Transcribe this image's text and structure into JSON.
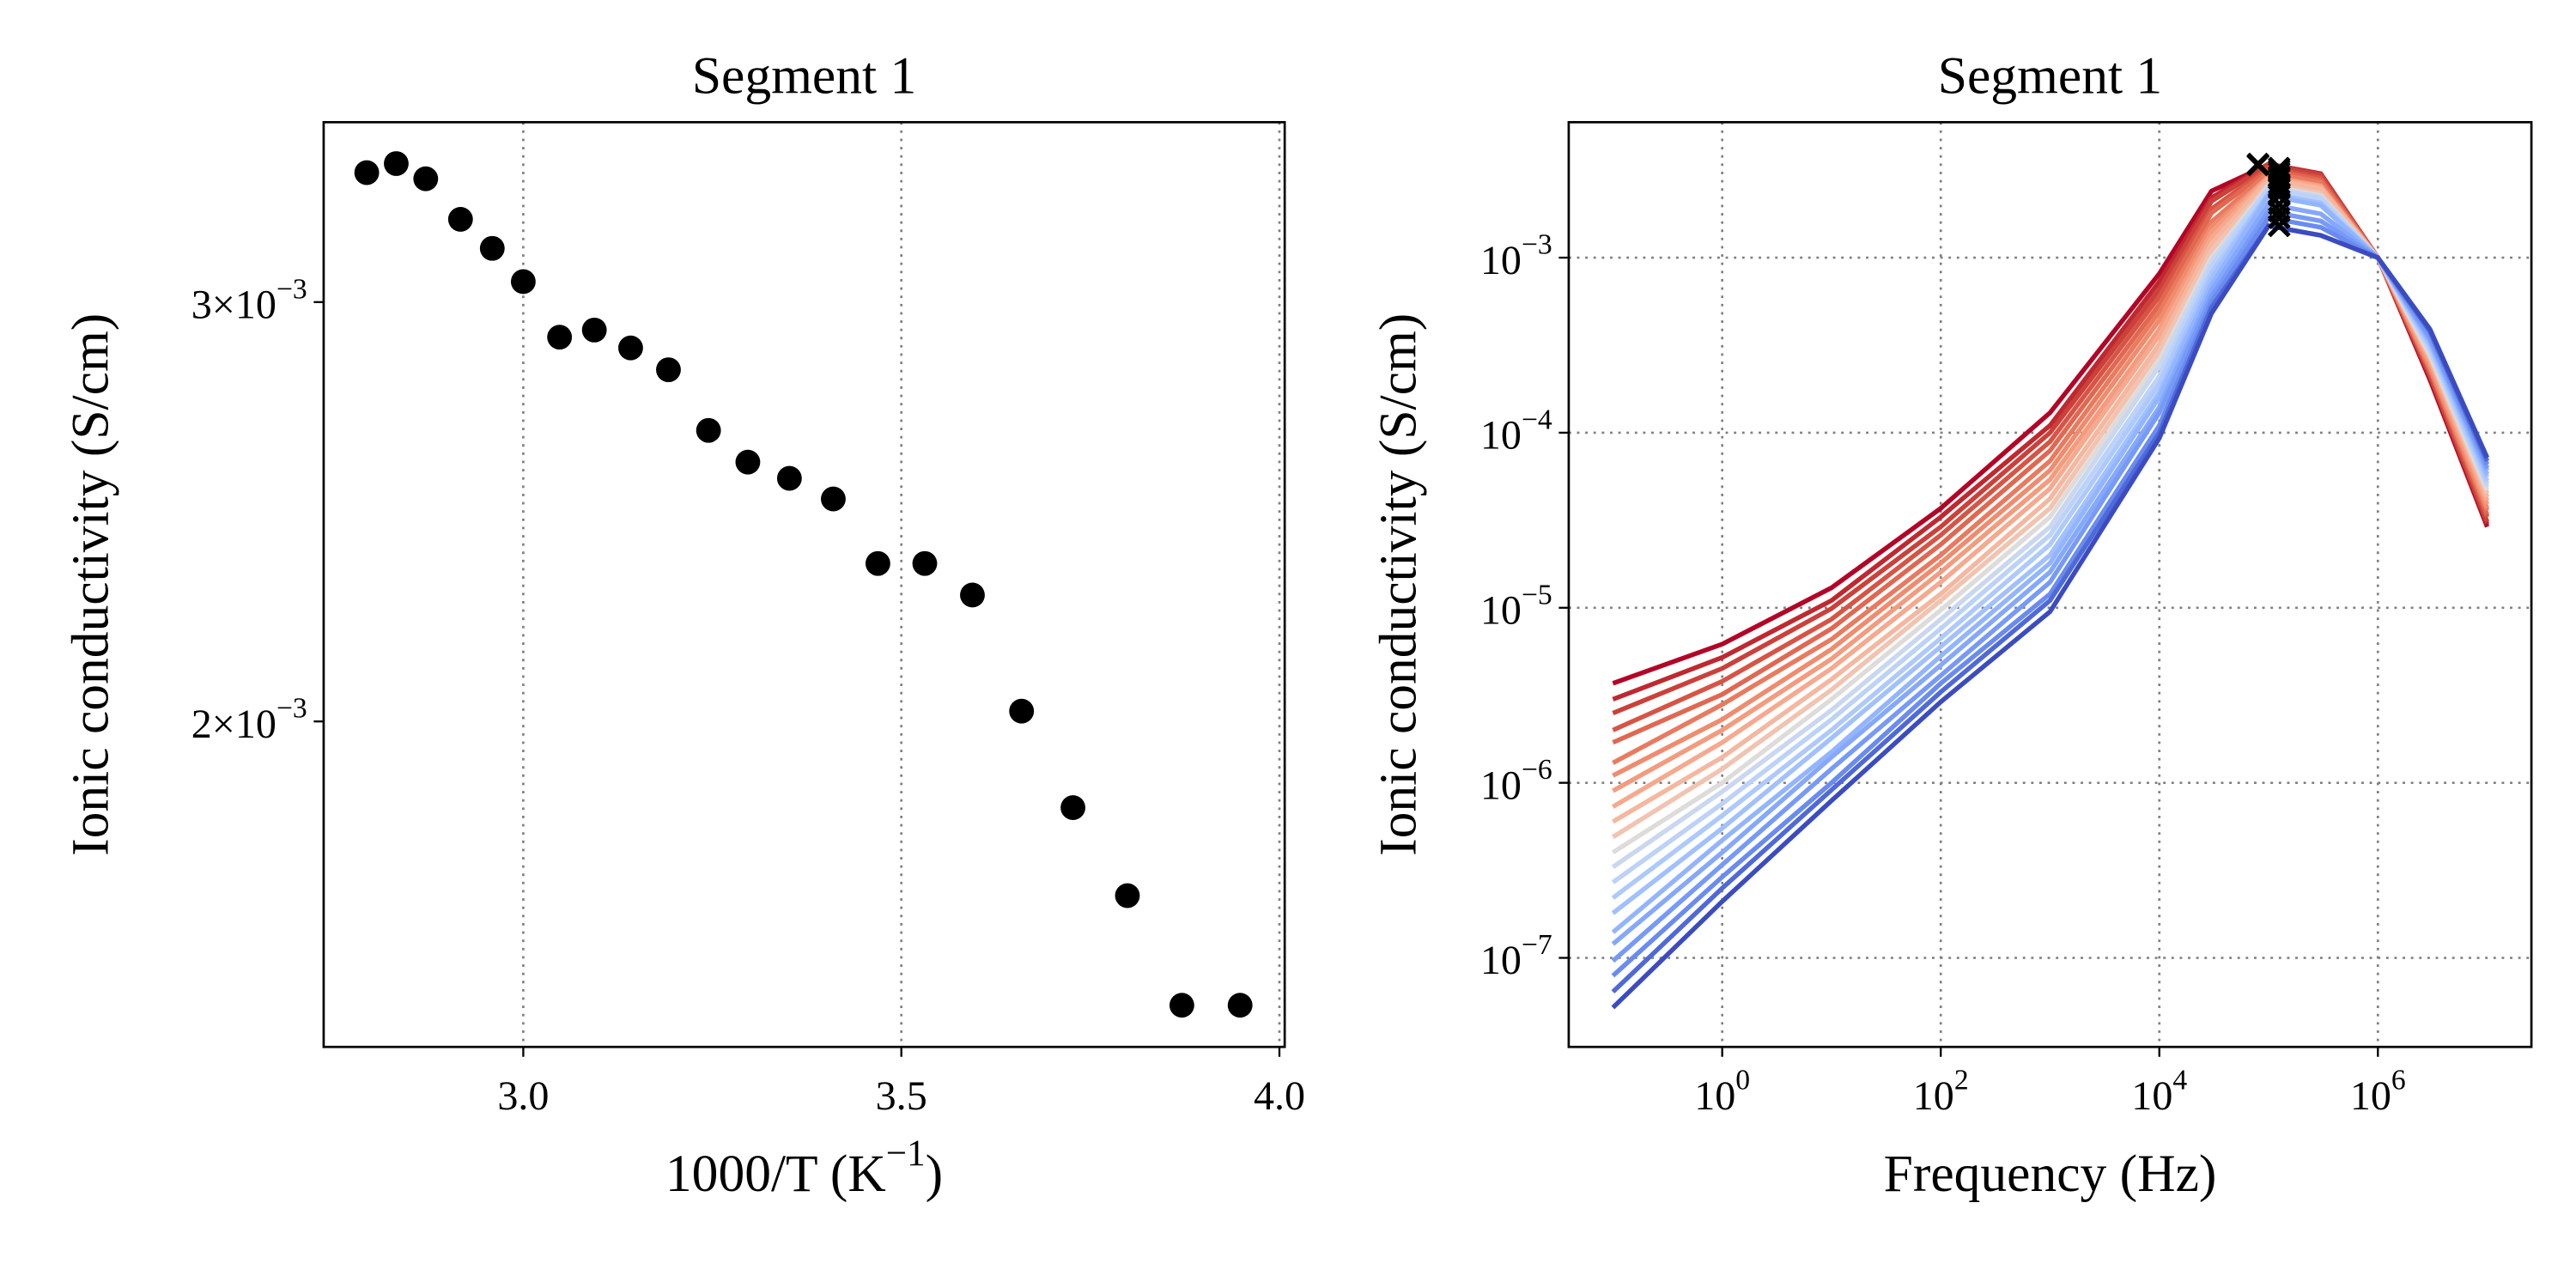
{
  "chart_data": [
    {
      "type": "scatter",
      "title": "Segment 1",
      "xlabel": {
        "text": "1000/T (K",
        "superscript": "−1",
        "suffix": ")"
      },
      "ylabel": "Ionic conductivity (S/cm)",
      "xscale": "linear",
      "yscale": "log",
      "grid": [
        "x"
      ],
      "color": "#000000",
      "xlim": [
        2.736,
        4.007
      ],
      "ylim": [
        0.00146,
        0.00357
      ],
      "xticks": [
        {
          "value": 3,
          "label": "3.0"
        },
        3.5,
        {
          "value": 4,
          "label": "4.0"
        }
      ],
      "yticks": [
        {
          "value": 0.002,
          "label": "2×10",
          "exponent": "−3"
        },
        {
          "value": 0.003,
          "label": "3×10",
          "exponent": "−3"
        }
      ],
      "x": [
        2.793,
        2.832,
        2.871,
        2.917,
        2.959,
        3.0,
        3.048,
        3.094,
        3.142,
        3.192,
        3.245,
        3.297,
        3.352,
        3.41,
        3.469,
        3.531,
        3.594,
        3.659,
        3.727,
        3.799,
        3.871,
        3.948
      ],
      "values": [
        0.0034,
        0.00343,
        0.00338,
        0.00325,
        0.00316,
        0.00306,
        0.0029,
        0.00292,
        0.00287,
        0.00281,
        0.00265,
        0.00257,
        0.00253,
        0.00248,
        0.00233,
        0.00233,
        0.00226,
        0.00202,
        0.00184,
        0.00169,
        0.00152,
        0.00152
      ]
    },
    {
      "type": "line",
      "title": "Segment 1",
      "xlabel": "Frequency (Hz)",
      "ylabel": "Ionic conductivity (S/cm)",
      "xscale": "log",
      "yscale": "log",
      "grid": [
        "x",
        "y"
      ],
      "xlim": [
        0.0394,
        25400000
      ],
      "ylim": [
        3.1e-08,
        0.00594
      ],
      "xticks": [
        {
          "value": 1,
          "label": "10",
          "exponent": "0"
        },
        {
          "value": 100,
          "label": "10",
          "exponent": "2"
        },
        {
          "value": 10000,
          "label": "10",
          "exponent": "4"
        },
        {
          "value": 1000000,
          "label": "10",
          "exponent": "6"
        }
      ],
      "yticks": [
        {
          "value": 1e-07,
          "label": "10",
          "exponent": "−7"
        },
        {
          "value": 1e-06,
          "label": "10",
          "exponent": "−6"
        },
        {
          "value": 1e-05,
          "label": "10",
          "exponent": "−5"
        },
        {
          "value": 0.0001,
          "label": "10",
          "exponent": "−4"
        },
        {
          "value": 0.001,
          "label": "10",
          "exponent": "−3"
        }
      ],
      "x": [
        0.1,
        1,
        10,
        100,
        1000,
        10000,
        30000,
        100000,
        300000,
        1000000,
        3000000,
        10000000
      ],
      "series": [
        {
          "color": "#b40426",
          "values": [
            3.7e-06,
            6.2e-06,
            1.3e-05,
            3.7e-05,
            0.00013,
            0.00081,
            0.0024,
            0.0034,
            0.00299,
            0.001,
            0.0002,
            2.9e-05
          ]
        },
        {
          "color": "#c0282f",
          "values": [
            3e-06,
            5.2e-06,
            1.1e-05,
            3.3e-05,
            0.00011,
            0.00073,
            0.0022,
            0.00343,
            0.00302,
            0.001,
            0.00021,
            3e-05
          ]
        },
        {
          "color": "#cc403a",
          "values": [
            2.5e-06,
            4.5e-06,
            9.9e-06,
            2.9e-05,
            0.0001,
            0.00066,
            0.0021,
            0.00338,
            0.00297,
            0.001,
            0.00021,
            3.1e-05
          ]
        },
        {
          "color": "#d75445",
          "values": [
            2e-06,
            3.8e-06,
            8.6e-06,
            2.6e-05,
            8.9e-05,
            0.0006,
            0.0019,
            0.00325,
            0.00286,
            0.001,
            0.00022,
            3.3e-05
          ]
        },
        {
          "color": "#e16751",
          "values": [
            1.7e-06,
            3.2e-06,
            7.6e-06,
            2.3e-05,
            7.9e-05,
            0.00054,
            0.0018,
            0.00316,
            0.00278,
            0.001,
            0.00023,
            3.4e-05
          ]
        },
        {
          "color": "#e97a5f",
          "values": [
            1.3e-06,
            2.8e-06,
            6.6e-06,
            2e-05,
            6.9e-05,
            0.00049,
            0.0016,
            0.00306,
            0.00269,
            0.001,
            0.00023,
            3.6e-05
          ]
        },
        {
          "color": "#f08b6e",
          "values": [
            1.1e-06,
            2.3e-06,
            5.8e-06,
            1.8e-05,
            6.1e-05,
            0.00044,
            0.0015,
            0.0029,
            0.00255,
            0.001,
            0.00024,
            3.7e-05
          ]
        },
        {
          "color": "#f49b7e",
          "values": [
            9e-07,
            2e-06,
            5.1e-06,
            1.6e-05,
            5.4e-05,
            0.00039,
            0.0014,
            0.00292,
            0.00257,
            0.001,
            0.00025,
            3.9e-05
          ]
        },
        {
          "color": "#f6a98e",
          "values": [
            7.3e-07,
            1.7e-06,
            4.5e-06,
            1.4e-05,
            4.8e-05,
            0.00036,
            0.0013,
            0.00287,
            0.00253,
            0.001,
            0.00026,
            4.1e-05
          ]
        },
        {
          "color": "#f5b79f",
          "values": [
            6e-07,
            1.4e-06,
            3.9e-06,
            1.2e-05,
            4.2e-05,
            0.00032,
            0.0012,
            0.00281,
            0.00247,
            0.001,
            0.00027,
            4.3e-05
          ]
        },
        {
          "color": "#f2c3b0",
          "values": [
            4.9e-07,
            1.2e-06,
            3.4e-06,
            1.1e-05,
            3.7e-05,
            0.00029,
            0.0011,
            0.00265,
            0.00233,
            0.001,
            0.00027,
            4.5e-05
          ]
        },
        {
          "color": "#dedcdb",
          "values": [
            4e-07,
            1e-06,
            3e-06,
            9.7e-06,
            3.3e-05,
            0.00026,
            0.001,
            0.00257,
            0.00226,
            0.001,
            0.00028,
            4.7e-05
          ]
        },
        {
          "color": "#c9d7f0",
          "values": [
            3.3e-07,
            8.9e-07,
            2.6e-06,
            8.6e-06,
            2.9e-05,
            0.00024,
            0.00095,
            0.00253,
            0.00223,
            0.001,
            0.00029,
            4.9e-05
          ]
        },
        {
          "color": "#bcd2f7",
          "values": [
            2.7e-07,
            7.6e-07,
            2.3e-06,
            7.6e-06,
            2.6e-05,
            0.00021,
            0.00089,
            0.00248,
            0.00218,
            0.001,
            0.0003,
            5.1e-05
          ]
        },
        {
          "color": "#aec9fc",
          "values": [
            2.2e-07,
            6.5e-07,
            2e-06,
            6.7e-06,
            2.3e-05,
            0.00019,
            0.00082,
            0.00233,
            0.00205,
            0.001,
            0.00031,
            5.3e-05
          ]
        },
        {
          "color": "#a1c0ff",
          "values": [
            1.8e-07,
            5.5e-07,
            1.8e-06,
            6e-06,
            2e-05,
            0.00017,
            0.00076,
            0.00233,
            0.00205,
            0.001,
            0.00032,
            5.6e-05
          ]
        },
        {
          "color": "#93b5fe",
          "values": [
            1.4e-07,
            4.7e-07,
            1.5e-06,
            5.3e-06,
            1.8e-05,
            0.00016,
            0.0007,
            0.00226,
            0.00199,
            0.001,
            0.00033,
            5.8e-05
          ]
        },
        {
          "color": "#85a8fc",
          "values": [
            1.2e-07,
            4e-07,
            1.4e-06,
            4.7e-06,
            1.6e-05,
            0.00014,
            0.00065,
            0.00202,
            0.00178,
            0.001,
            0.00034,
            6.1e-05
          ]
        },
        {
          "color": "#779af7",
          "values": [
            9.6e-08,
            3.4e-07,
            1.2e-06,
            4.1e-06,
            1.4e-05,
            0.00013,
            0.0006,
            0.00184,
            0.00162,
            0.001,
            0.00035,
            6.3e-05
          ]
        },
        {
          "color": "#6a8bef",
          "values": [
            7.9e-08,
            2.9e-07,
            1e-06,
            3.7e-06,
            1.2e-05,
            0.00011,
            0.00056,
            0.00169,
            0.00149,
            0.001,
            0.00037,
            6.6e-05
          ]
        },
        {
          "color": "#4f69d9",
          "values": [
            6.4e-08,
            2.5e-07,
            9.1e-07,
            3.3e-06,
            1.1e-05,
            0.0001,
            0.00052,
            0.00152,
            0.00134,
            0.001,
            0.00038,
            6.9e-05
          ]
        },
        {
          "color": "#3b4cc0",
          "values": [
            5.2e-08,
            2.1e-07,
            7.9e-07,
            2.9e-06,
            9.5e-06,
            9.3e-05,
            0.00048,
            0.00152,
            0.00134,
            0.001,
            0.00039,
            7.2e-05
          ]
        }
      ],
      "markers": {
        "color": "#000000",
        "x": [
          80000,
          80000,
          80000,
          125000,
          125000,
          125000,
          125000,
          125000,
          125000,
          125000,
          125000,
          125000,
          125000,
          125000,
          125000,
          125000,
          125000,
          125000,
          125000,
          125000,
          125000,
          125000
        ],
        "y": [
          0.0034,
          0.00343,
          0.00338,
          0.00325,
          0.00316,
          0.00306,
          0.0029,
          0.00292,
          0.00287,
          0.00281,
          0.00265,
          0.00257,
          0.00253,
          0.00248,
          0.00233,
          0.00233,
          0.00226,
          0.00202,
          0.00184,
          0.00169,
          0.00152,
          0.00152
        ]
      }
    }
  ]
}
